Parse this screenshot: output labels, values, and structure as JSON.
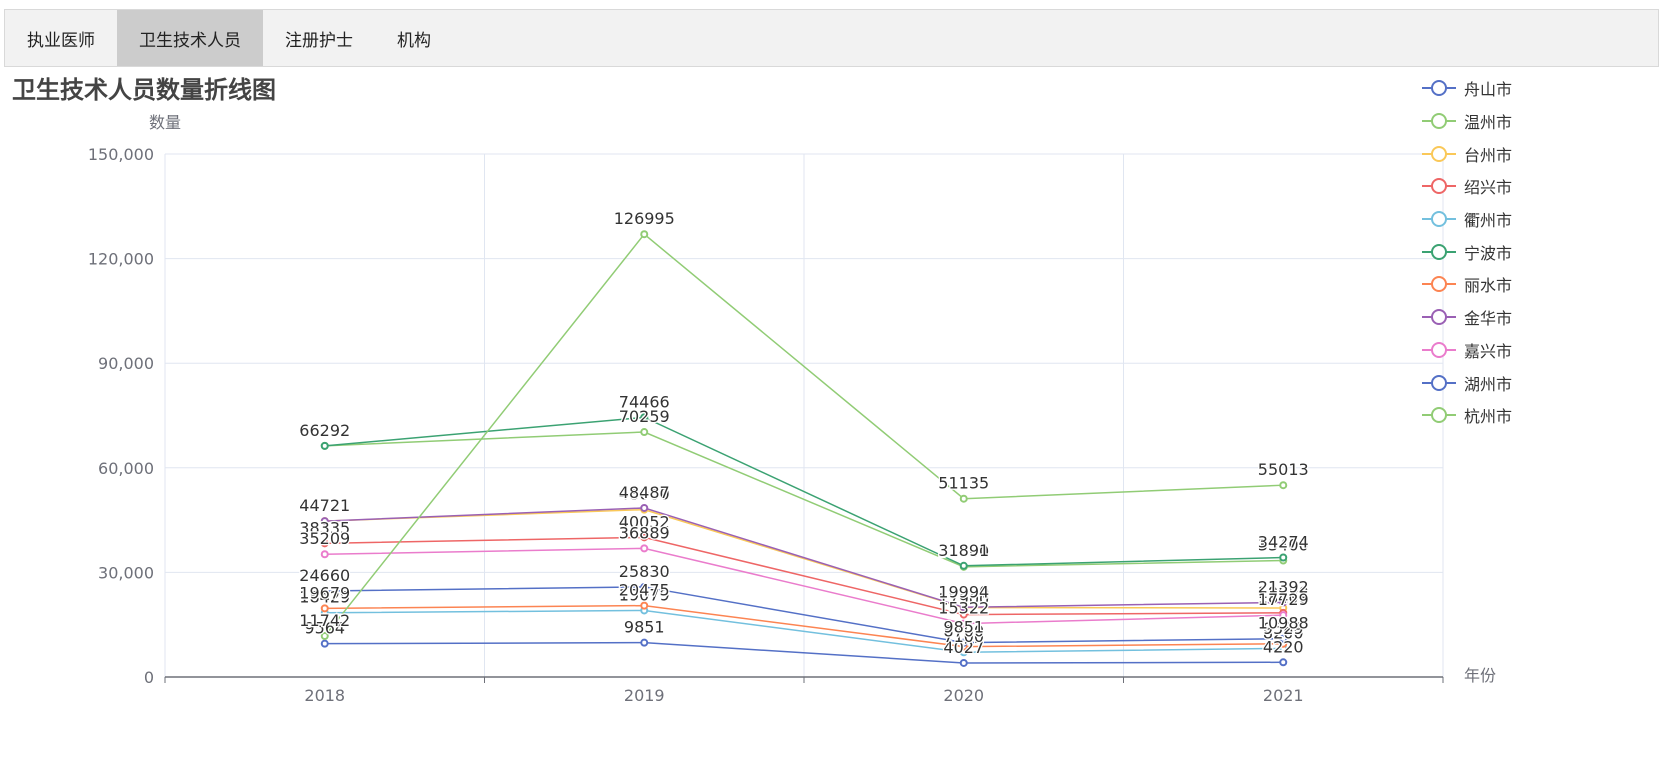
{
  "tabs": [
    {
      "label": "执业医师",
      "active": false
    },
    {
      "label": "卫生技术人员",
      "active": true
    },
    {
      "label": "注册护士",
      "active": false
    },
    {
      "label": "机构",
      "active": false
    }
  ],
  "chart_data": {
    "type": "line",
    "title": "卫生技术人员数量折线图",
    "xlabel": "年份",
    "ylabel": "数量",
    "categories": [
      "2018",
      "2019",
      "2020",
      "2021"
    ],
    "ylim": [
      0,
      150000
    ],
    "yticks": [
      "0",
      "30,000",
      "60,000",
      "90,000",
      "120,000",
      "150,000"
    ],
    "grid": true,
    "legend_position": "top-right",
    "series": [
      {
        "name": "舟山市",
        "color": "#5470c6",
        "values": [
          9564,
          9851,
          4027,
          4220
        ]
      },
      {
        "name": "温州市",
        "color": "#91cc75",
        "values": [
          66292,
          70259,
          31600,
          33400
        ]
      },
      {
        "name": "台州市",
        "color": "#fac858",
        "values": [
          44721,
          48000,
          19900,
          19800
        ]
      },
      {
        "name": "绍兴市",
        "color": "#ee6666",
        "values": [
          38335,
          40052,
          17900,
          18400
        ]
      },
      {
        "name": "衢州市",
        "color": "#73c0de",
        "values": [
          18429,
          19079,
          7100,
          8200
        ]
      },
      {
        "name": "宁波市",
        "color": "#3ba272",
        "values": [
          66292,
          74466,
          31891,
          34274
        ]
      },
      {
        "name": "丽水市",
        "color": "#fc8452",
        "values": [
          19679,
          20475,
          8700,
          9529
        ]
      },
      {
        "name": "金华市",
        "color": "#9a60b4",
        "values": [
          44721,
          48487,
          19994,
          21392
        ]
      },
      {
        "name": "嘉兴市",
        "color": "#ea7ccc",
        "values": [
          35209,
          36889,
          15322,
          17729
        ]
      },
      {
        "name": "湖州市",
        "color": "#5470c6",
        "values": [
          24660,
          25830,
          9851,
          10988
        ]
      },
      {
        "name": "杭州市",
        "color": "#91cc75",
        "values": [
          11742,
          126995,
          51135,
          55013
        ]
      }
    ]
  }
}
